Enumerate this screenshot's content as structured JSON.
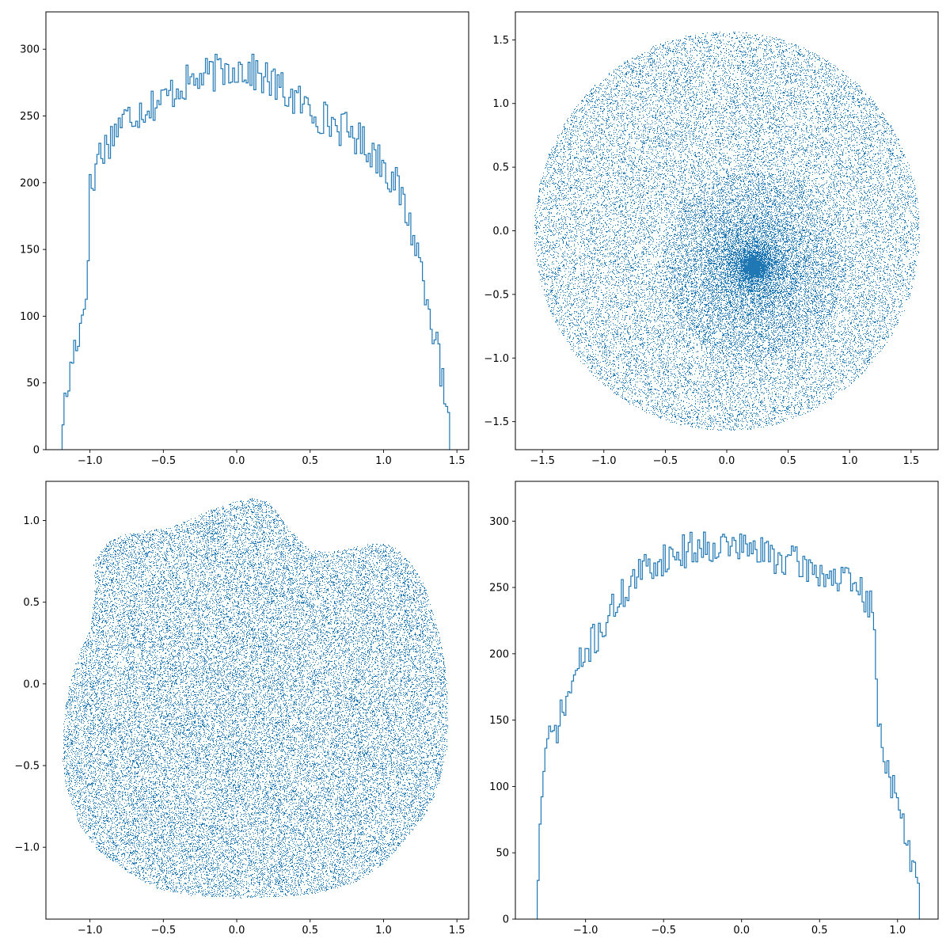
{
  "figure": {
    "background": "#ffffff",
    "series_color": "#1f77b4"
  },
  "chart_data": [
    {
      "type": "histogram",
      "histtype": "step",
      "panel": "top-left",
      "title": "",
      "xlabel": "",
      "ylabel": "",
      "xlim": [
        -1.3,
        1.58
      ],
      "ylim": [
        0,
        328
      ],
      "xticks": [
        -1.0,
        -0.5,
        0.0,
        0.5,
        1.0,
        1.5
      ],
      "xtick_labels": [
        "−1.0",
        "−0.5",
        "0.0",
        "0.5",
        "1.0",
        "1.5"
      ],
      "yticks": [
        0,
        50,
        100,
        150,
        200,
        250,
        300
      ],
      "ytick_labels": [
        "0",
        "50",
        "100",
        "150",
        "200",
        "250",
        "300"
      ],
      "bin_range": [
        -1.19,
        1.45
      ],
      "bin_count": 200,
      "envelope": [
        [
          -1.19,
          22
        ],
        [
          -1.15,
          45
        ],
        [
          -1.11,
          75
        ],
        [
          -1.07,
          90
        ],
        [
          -1.04,
          107
        ],
        [
          -1.02,
          125
        ],
        [
          -1.0,
          195
        ],
        [
          -0.97,
          200
        ],
        [
          -0.95,
          222
        ],
        [
          -0.9,
          226
        ],
        [
          -0.85,
          235
        ],
        [
          -0.8,
          245
        ],
        [
          -0.7,
          252
        ],
        [
          -0.6,
          258
        ],
        [
          -0.5,
          262
        ],
        [
          -0.4,
          272
        ],
        [
          -0.3,
          276
        ],
        [
          -0.2,
          280
        ],
        [
          -0.1,
          284
        ],
        [
          0.0,
          287
        ],
        [
          0.1,
          283
        ],
        [
          0.2,
          278
        ],
        [
          0.3,
          270
        ],
        [
          0.4,
          262
        ],
        [
          0.5,
          255
        ],
        [
          0.6,
          248
        ],
        [
          0.7,
          242
        ],
        [
          0.8,
          236
        ],
        [
          0.9,
          226
        ],
        [
          1.0,
          215
        ],
        [
          1.05,
          205
        ],
        [
          1.1,
          195
        ],
        [
          1.15,
          180
        ],
        [
          1.2,
          162
        ],
        [
          1.25,
          140
        ],
        [
          1.3,
          115
        ],
        [
          1.35,
          85
        ],
        [
          1.4,
          50
        ],
        [
          1.43,
          25
        ],
        [
          1.45,
          12
        ]
      ],
      "noise_amplitude": 14,
      "seed": 17
    },
    {
      "type": "scatter",
      "panel": "top-right",
      "title": "",
      "xlabel": "",
      "ylabel": "",
      "xlim": [
        -1.72,
        1.72
      ],
      "ylim": [
        -1.72,
        1.72
      ],
      "xticks": [
        -1.5,
        -1.0,
        -0.5,
        0.0,
        0.5,
        1.0,
        1.5
      ],
      "xtick_labels": [
        "−1.5",
        "−1.0",
        "−0.5",
        "0.0",
        "0.5",
        "1.0",
        "1.5"
      ],
      "yticks": [
        -1.5,
        -1.0,
        -0.5,
        0.0,
        0.5,
        1.0,
        1.5
      ],
      "ytick_labels": [
        "−1.5",
        "−1.0",
        "−0.5",
        "0.0",
        "0.5",
        "1.0",
        "1.5"
      ],
      "marker": "pixel",
      "n_points": 42000,
      "shape": "disk",
      "radius": 1.57,
      "dense_center": [
        0.22,
        -0.28
      ],
      "dense_fraction": 0.28,
      "seed": 31
    },
    {
      "type": "scatter",
      "panel": "bottom-left",
      "title": "",
      "xlabel": "",
      "ylabel": "",
      "xlim": [
        -1.3,
        1.58
      ],
      "ylim": [
        -1.44,
        1.24
      ],
      "xticks": [
        -1.0,
        -0.5,
        0.0,
        0.5,
        1.0,
        1.5
      ],
      "xtick_labels": [
        "−1.0",
        "−0.5",
        "0.0",
        "0.5",
        "1.0",
        "1.5"
      ],
      "yticks": [
        -1.0,
        -0.5,
        0.0,
        0.5,
        1.0
      ],
      "ytick_labels": [
        "−1.0",
        "−0.5",
        "0.0",
        "0.5",
        "1.0"
      ],
      "marker": "pixel",
      "n_points": 42000,
      "outline": [
        [
          -0.98,
          0.74
        ],
        [
          -0.9,
          0.86
        ],
        [
          -0.78,
          0.91
        ],
        [
          -0.62,
          0.94
        ],
        [
          -0.45,
          0.96
        ],
        [
          -0.3,
          1.02
        ],
        [
          -0.15,
          1.08
        ],
        [
          0.0,
          1.12
        ],
        [
          0.1,
          1.14
        ],
        [
          0.2,
          1.12
        ],
        [
          0.27,
          1.06
        ],
        [
          0.35,
          0.96
        ],
        [
          0.42,
          0.89
        ],
        [
          0.5,
          0.82
        ],
        [
          0.62,
          0.81
        ],
        [
          0.75,
          0.83
        ],
        [
          0.9,
          0.86
        ],
        [
          1.02,
          0.86
        ],
        [
          1.1,
          0.82
        ],
        [
          1.2,
          0.72
        ],
        [
          1.28,
          0.6
        ],
        [
          1.33,
          0.45
        ],
        [
          1.38,
          0.3
        ],
        [
          1.42,
          0.1
        ],
        [
          1.44,
          -0.15
        ],
        [
          1.43,
          -0.4
        ],
        [
          1.38,
          -0.6
        ],
        [
          1.3,
          -0.78
        ],
        [
          1.15,
          -0.95
        ],
        [
          1.0,
          -1.1
        ],
        [
          0.8,
          -1.22
        ],
        [
          0.55,
          -1.28
        ],
        [
          0.3,
          -1.3
        ],
        [
          0.0,
          -1.31
        ],
        [
          -0.3,
          -1.3
        ],
        [
          -0.55,
          -1.25
        ],
        [
          -0.75,
          -1.15
        ],
        [
          -0.95,
          -1.02
        ],
        [
          -1.08,
          -0.85
        ],
        [
          -1.16,
          -0.65
        ],
        [
          -1.19,
          -0.45
        ],
        [
          -1.18,
          -0.2
        ],
        [
          -1.14,
          0.0
        ],
        [
          -1.08,
          0.18
        ],
        [
          -1.0,
          0.35
        ],
        [
          -0.97,
          0.55
        ]
      ],
      "seed": 53
    },
    {
      "type": "histogram",
      "histtype": "step",
      "panel": "bottom-right",
      "title": "",
      "xlabel": "",
      "ylabel": "",
      "xlim": [
        -1.45,
        1.26
      ],
      "ylim": [
        0,
        330
      ],
      "xticks": [
        -1.0,
        -0.5,
        0.0,
        0.5,
        1.0
      ],
      "xtick_labels": [
        "−1.0",
        "−0.5",
        "0.0",
        "0.5",
        "1.0"
      ],
      "yticks": [
        0,
        50,
        100,
        150,
        200,
        250,
        300
      ],
      "ytick_labels": [
        "0",
        "50",
        "100",
        "150",
        "200",
        "250",
        "300"
      ],
      "bin_range": [
        -1.31,
        1.14
      ],
      "bin_count": 200,
      "envelope": [
        [
          -1.31,
          20
        ],
        [
          -1.29,
          70
        ],
        [
          -1.27,
          115
        ],
        [
          -1.24,
          132
        ],
        [
          -1.2,
          140
        ],
        [
          -1.15,
          155
        ],
        [
          -1.1,
          172
        ],
        [
          -1.05,
          188
        ],
        [
          -1.0,
          200
        ],
        [
          -0.95,
          210
        ],
        [
          -0.9,
          218
        ],
        [
          -0.8,
          238
        ],
        [
          -0.7,
          255
        ],
        [
          -0.6,
          265
        ],
        [
          -0.5,
          272
        ],
        [
          -0.4,
          276
        ],
        [
          -0.3,
          280
        ],
        [
          -0.2,
          282
        ],
        [
          -0.1,
          282
        ],
        [
          0.0,
          280
        ],
        [
          0.1,
          277
        ],
        [
          0.2,
          274
        ],
        [
          0.3,
          270
        ],
        [
          0.4,
          266
        ],
        [
          0.5,
          262
        ],
        [
          0.6,
          257
        ],
        [
          0.7,
          252
        ],
        [
          0.75,
          248
        ],
        [
          0.8,
          242
        ],
        [
          0.84,
          232
        ],
        [
          0.86,
          190
        ],
        [
          0.88,
          150
        ],
        [
          0.9,
          130
        ],
        [
          0.95,
          110
        ],
        [
          1.0,
          85
        ],
        [
          1.05,
          62
        ],
        [
          1.08,
          50
        ],
        [
          1.11,
          33
        ],
        [
          1.13,
          20
        ],
        [
          1.14,
          10
        ]
      ],
      "noise_amplitude": 13,
      "seed": 71
    }
  ]
}
